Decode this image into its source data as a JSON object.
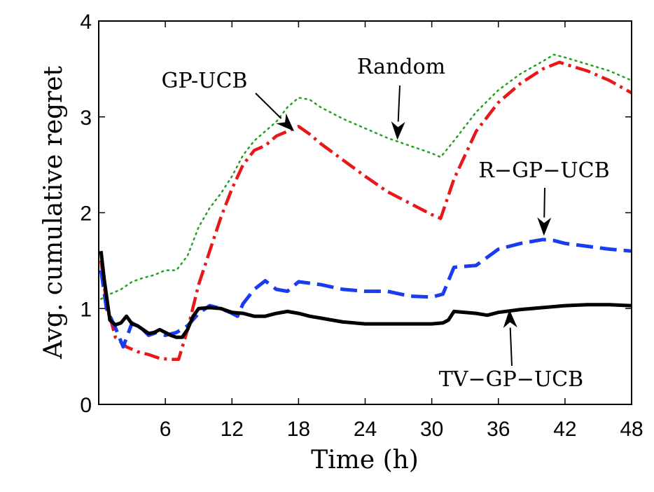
{
  "chart_data": {
    "type": "line",
    "title": "",
    "xlabel": "Time (h)",
    "ylabel": "Avg. cumulative regret",
    "xlim": [
      0,
      48
    ],
    "ylim": [
      0,
      4
    ],
    "xticks": [
      "6",
      "12",
      "18",
      "24",
      "30",
      "36",
      "42",
      "48"
    ],
    "xtick_values": [
      6,
      12,
      18,
      24,
      30,
      36,
      42,
      48
    ],
    "yticks": [
      "0",
      "1",
      "2",
      "3",
      "4"
    ],
    "ytick_values": [
      0,
      1,
      2,
      3,
      4
    ],
    "grid": false,
    "series": [
      {
        "name": "Random",
        "color": "#22a022",
        "style": "dotted",
        "x": [
          0.2,
          1,
          2,
          3,
          4,
          5,
          6,
          7,
          8,
          9,
          10,
          11,
          12,
          13,
          14,
          15,
          16,
          17,
          18,
          19,
          20,
          22,
          24,
          26,
          28,
          30,
          30.8,
          32,
          34,
          36,
          38,
          40,
          41,
          42,
          44,
          46,
          48
        ],
        "y": [
          1.1,
          1.15,
          1.2,
          1.28,
          1.32,
          1.35,
          1.4,
          1.4,
          1.55,
          1.85,
          2.05,
          2.2,
          2.38,
          2.6,
          2.75,
          2.85,
          2.95,
          3.1,
          3.2,
          3.18,
          3.1,
          2.98,
          2.88,
          2.78,
          2.7,
          2.62,
          2.58,
          2.75,
          3.05,
          3.28,
          3.45,
          3.58,
          3.65,
          3.62,
          3.55,
          3.48,
          3.38
        ]
      },
      {
        "name": "GP-UCB",
        "color": "#e81818",
        "style": "dashdot",
        "x": [
          0.2,
          0.7,
          1.5,
          2.5,
          3.5,
          4.5,
          5.5,
          6.5,
          7.2,
          8,
          9,
          10,
          11,
          12,
          13,
          14,
          15,
          16,
          17,
          18,
          19,
          20,
          22,
          24,
          26,
          28,
          30,
          30.8,
          32,
          34,
          36,
          38,
          40,
          41.5,
          42,
          44,
          46,
          48
        ],
        "y": [
          1.5,
          1.05,
          0.7,
          0.6,
          0.55,
          0.52,
          0.48,
          0.47,
          0.47,
          0.78,
          1.25,
          1.6,
          1.95,
          2.25,
          2.5,
          2.65,
          2.7,
          2.8,
          2.85,
          2.9,
          2.82,
          2.72,
          2.55,
          2.38,
          2.22,
          2.1,
          1.98,
          1.94,
          2.35,
          2.85,
          3.15,
          3.35,
          3.5,
          3.57,
          3.55,
          3.48,
          3.38,
          3.25
        ]
      },
      {
        "name": "R-GP-UCB",
        "color": "#1a3cf0",
        "style": "dashed",
        "x": [
          0.2,
          0.7,
          1.5,
          2.2,
          3,
          3.8,
          4.5,
          5.2,
          6,
          7,
          8,
          9,
          10,
          11,
          12,
          12.5,
          13,
          14,
          15,
          16,
          17,
          18,
          20,
          22,
          24,
          26,
          28,
          30,
          31,
          32,
          34,
          36,
          38,
          40,
          41,
          42,
          44,
          46,
          48
        ],
        "y": [
          1.4,
          1.0,
          0.8,
          0.6,
          0.85,
          0.8,
          0.72,
          0.75,
          0.72,
          0.75,
          0.82,
          0.95,
          1.03,
          1.0,
          0.95,
          0.92,
          1.05,
          1.2,
          1.29,
          1.2,
          1.18,
          1.28,
          1.25,
          1.2,
          1.18,
          1.18,
          1.13,
          1.12,
          1.15,
          1.43,
          1.45,
          1.62,
          1.68,
          1.72,
          1.71,
          1.68,
          1.65,
          1.62,
          1.6
        ]
      },
      {
        "name": "TV-GP-UCB",
        "color": "#000000",
        "style": "solid",
        "x": [
          0.2,
          0.5,
          1,
          1.5,
          2,
          2.5,
          3,
          3.5,
          4,
          4.5,
          5,
          5.5,
          6,
          6.5,
          7,
          7.5,
          8,
          8.5,
          9,
          10,
          11,
          12,
          13,
          14,
          15,
          16,
          17,
          18,
          19,
          20,
          22,
          24,
          26,
          28,
          30,
          31,
          31.5,
          32,
          33,
          34,
          35,
          36,
          38,
          40,
          41,
          42,
          44,
          46,
          48
        ],
        "y": [
          1.6,
          1.3,
          0.88,
          0.83,
          0.85,
          0.92,
          0.84,
          0.82,
          0.78,
          0.74,
          0.75,
          0.78,
          0.75,
          0.72,
          0.7,
          0.7,
          0.78,
          0.92,
          1.0,
          1.01,
          1.0,
          0.96,
          0.95,
          0.92,
          0.92,
          0.95,
          0.97,
          0.95,
          0.92,
          0.9,
          0.86,
          0.84,
          0.84,
          0.84,
          0.84,
          0.85,
          0.88,
          0.97,
          0.96,
          0.95,
          0.93,
          0.96,
          0.99,
          1.01,
          1.02,
          1.03,
          1.04,
          1.04,
          1.03
        ]
      }
    ],
    "annotations": [
      {
        "id": "gp-ucb",
        "text": "GP-UCB",
        "target_x": 17.6,
        "target_y": 2.85
      },
      {
        "id": "random",
        "text": "Random",
        "target_x": 26.9,
        "target_y": 2.76
      },
      {
        "id": "r-gp-ucb",
        "text": "R−GP−UCB",
        "target_x": 40.1,
        "target_y": 1.76
      },
      {
        "id": "tv-gp-ucb",
        "text": "TV−GP−UCB",
        "target_x": 37.0,
        "target_y": 0.99
      }
    ]
  }
}
